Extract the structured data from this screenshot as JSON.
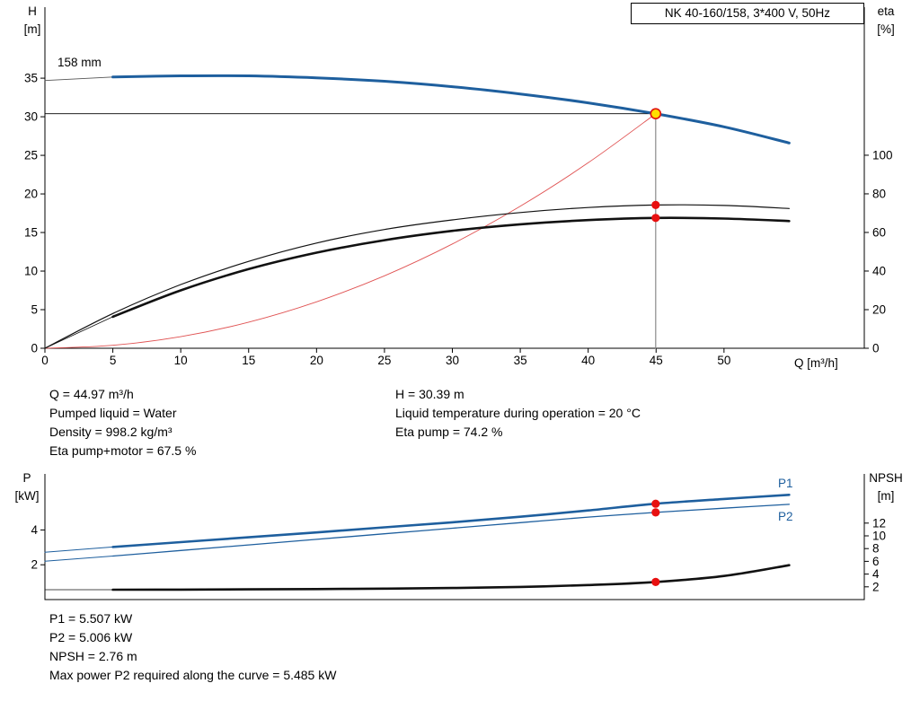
{
  "header": {
    "title": "NK 40-160/158, 3*400 V, 50Hz"
  },
  "top_chart": {
    "h_label": "H",
    "h_unit": "[m]",
    "eta_label": "eta",
    "eta_unit": "[%]",
    "x_label": "Q [m³/h]",
    "impeller": "158 mm"
  },
  "bottom_chart": {
    "p_label": "P",
    "p_unit": "[kW]",
    "npsh_label": "NPSH",
    "npsh_unit": "[m]",
    "p1_label": "P1",
    "p2_label": "P2"
  },
  "info_top": {
    "left": [
      "Q = 44.97 m³/h",
      "Pumped liquid = Water",
      "Density = 998.2 kg/m³",
      "Eta pump+motor = 67.5 %"
    ],
    "right": [
      "H = 30.39 m",
      "Liquid temperature during operation = 20 °C",
      "Eta pump = 74.2 %"
    ]
  },
  "info_bottom": [
    "P1 = 5.507 kW",
    "P2 = 5.006 kW",
    "NPSH = 2.76 m",
    "Max power P2 required along the curve = 5.485 kW"
  ],
  "colors": {
    "curve_blue": "#1e5f9e",
    "marker_red": "#e81010",
    "duty_yellow": "#ffdf00"
  },
  "chart_data": [
    {
      "type": "line",
      "title": "NK 40-160/158, 3*400 V, 50Hz",
      "x_axis": {
        "label": "Q [m³/h]",
        "min": 0,
        "max": 60.33,
        "ticks": [
          0,
          5,
          10,
          15,
          20,
          25,
          30,
          35,
          40,
          45,
          50
        ],
        "labels": true
      },
      "y_axes": {
        "h": {
          "label": "H [m]",
          "min": 0,
          "max": 44.2,
          "ticks": [
            0,
            5,
            10,
            15,
            20,
            25,
            30,
            35
          ],
          "side": "left"
        },
        "eta": {
          "label": "eta [%]",
          "min": 0,
          "max": 176.7,
          "ticks": [
            0,
            20,
            40,
            60,
            80,
            100
          ],
          "side": "right"
        }
      },
      "duty_point": {
        "q": 44.97,
        "h": 30.39,
        "eta_pump": 74.2,
        "eta_pump_motor": 67.5
      },
      "series": [
        {
          "name": "duty-vline",
          "axis": "h",
          "color": "#8a8a8a",
          "width": 1.2,
          "smooth": false,
          "points": [
            [
              44.97,
              0
            ],
            [
              44.97,
              30.39
            ]
          ]
        },
        {
          "name": "duty-hline",
          "axis": "h",
          "color": "#000000",
          "width": 0.9,
          "smooth": false,
          "points": [
            [
              0,
              30.39
            ],
            [
              44.97,
              30.39
            ]
          ]
        },
        {
          "name": "system-curve",
          "axis": "h",
          "color": "#e05252",
          "width": 0.9,
          "smooth": true,
          "points": [
            [
              0,
              0
            ],
            [
              5,
              0.38
            ],
            [
              10,
              1.5
            ],
            [
              15,
              3.38
            ],
            [
              20,
              6.01
            ],
            [
              25,
              9.39
            ],
            [
              30,
              13.52
            ],
            [
              35,
              18.41
            ],
            [
              40,
              24.04
            ],
            [
              44.97,
              30.39
            ]
          ]
        },
        {
          "name": "impeller-lead",
          "axis": "h",
          "color": "#555555",
          "width": 0.9,
          "smooth": false,
          "points": [
            [
              0,
              34.7
            ],
            [
              5,
              35.15
            ]
          ]
        },
        {
          "name": "eta-pump-curve",
          "axis": "eta",
          "color": "#111111",
          "width": 1.2,
          "smooth": true,
          "points": [
            [
              0,
              0
            ],
            [
              5,
              18
            ],
            [
              10,
              33
            ],
            [
              15,
              45
            ],
            [
              20,
              54.5
            ],
            [
              25,
              61.5
            ],
            [
              30,
              66.5
            ],
            [
              35,
              70.3
            ],
            [
              40,
              72.9
            ],
            [
              44.97,
              74.2
            ],
            [
              50,
              74
            ],
            [
              54.8,
              72.4
            ]
          ]
        },
        {
          "name": "eta-pump-motor-lead",
          "axis": "eta",
          "color": "#111111",
          "width": 0.8,
          "smooth": false,
          "points": [
            [
              0,
              0
            ],
            [
              5,
              16.3
            ]
          ]
        },
        {
          "name": "eta-pump-motor-curve",
          "axis": "eta",
          "color": "#111111",
          "width": 2.6,
          "smooth": true,
          "points": [
            [
              5,
              16.3
            ],
            [
              10,
              30
            ],
            [
              15,
              41
            ],
            [
              20,
              49.5
            ],
            [
              25,
              56
            ],
            [
              30,
              60.8
            ],
            [
              35,
              64.2
            ],
            [
              40,
              66.4
            ],
            [
              44.97,
              67.5
            ],
            [
              50,
              67.2
            ],
            [
              54.8,
              65.9
            ]
          ]
        },
        {
          "name": "head-curve-158mm",
          "axis": "h",
          "color": "#1e5f9e",
          "width": 3,
          "smooth": true,
          "points": [
            [
              5,
              35.15
            ],
            [
              10,
              35.3
            ],
            [
              15,
              35.3
            ],
            [
              20,
              35.05
            ],
            [
              25,
              34.6
            ],
            [
              30,
              33.9
            ],
            [
              35,
              32.95
            ],
            [
              40,
              31.8
            ],
            [
              44.97,
              30.39
            ],
            [
              50,
              28.7
            ],
            [
              54.8,
              26.6
            ]
          ]
        }
      ],
      "markers": [
        {
          "name": "eta-pump-point",
          "x": 44.97,
          "y": 74.2,
          "axis": "eta",
          "fill": "#e81010",
          "r": 4.6
        },
        {
          "name": "eta-pm-point",
          "x": 44.97,
          "y": 67.5,
          "axis": "eta",
          "fill": "#e81010",
          "r": 4.6
        },
        {
          "name": "duty-point",
          "x": 44.97,
          "y": 30.39,
          "axis": "h",
          "fill": "#ffdf00",
          "stroke": "#e01010",
          "sw": 1.6,
          "r": 5.5
        }
      ]
    },
    {
      "type": "line",
      "title": "Power and NPSH",
      "x_axis": {
        "label": "",
        "min": 0,
        "max": 60.33,
        "ticks": [],
        "labels": false
      },
      "y_axes": {
        "p": {
          "label": "P [kW]",
          "min": 0,
          "max": 7.22,
          "ticks": [
            2,
            4
          ],
          "side": "left"
        },
        "npsh": {
          "label": "NPSH [m]",
          "min": 0,
          "max": 19.72,
          "ticks": [
            2,
            4,
            6,
            8,
            10,
            12
          ],
          "side": "right"
        }
      },
      "duty_point": {
        "q": 44.97,
        "p1": 5.507,
        "p2": 5.006,
        "npsh": 2.76,
        "max_p2_along_curve": 5.485
      },
      "series": [
        {
          "name": "p1-lead",
          "axis": "p",
          "color": "#1e5f9e",
          "width": 1,
          "smooth": false,
          "points": [
            [
              0,
              2.72
            ],
            [
              5,
              3.02
            ]
          ]
        },
        {
          "name": "p2-lead",
          "axis": "p",
          "color": "#1e5f9e",
          "width": 1,
          "smooth": false,
          "points": [
            [
              0,
              2.2
            ],
            [
              5,
              2.5
            ]
          ]
        },
        {
          "name": "npsh-lead",
          "axis": "npsh",
          "color": "#111111",
          "width": 0.8,
          "smooth": false,
          "points": [
            [
              0,
              1.55
            ],
            [
              5,
              1.55
            ]
          ]
        },
        {
          "name": "p2-curve",
          "axis": "p",
          "color": "#1e5f9e",
          "width": 1.3,
          "smooth": true,
          "points": [
            [
              5,
              2.5
            ],
            [
              10,
              2.82
            ],
            [
              15,
              3.14
            ],
            [
              20,
              3.46
            ],
            [
              25,
              3.78
            ],
            [
              30,
              4.1
            ],
            [
              35,
              4.42
            ],
            [
              40,
              4.74
            ],
            [
              44.97,
              5.006
            ],
            [
              50,
              5.25
            ],
            [
              54.8,
              5.47
            ]
          ]
        },
        {
          "name": "p1-curve",
          "axis": "p",
          "color": "#1e5f9e",
          "width": 2.6,
          "smooth": true,
          "points": [
            [
              5,
              3.02
            ],
            [
              10,
              3.3
            ],
            [
              15,
              3.58
            ],
            [
              20,
              3.86
            ],
            [
              25,
              4.15
            ],
            [
              30,
              4.44
            ],
            [
              35,
              4.76
            ],
            [
              40,
              5.12
            ],
            [
              44.97,
              5.507
            ],
            [
              50,
              5.78
            ],
            [
              54.8,
              6.02
            ]
          ]
        },
        {
          "name": "npsh-curve",
          "axis": "npsh",
          "color": "#111111",
          "width": 2.6,
          "smooth": true,
          "points": [
            [
              5,
              1.55
            ],
            [
              10,
              1.57
            ],
            [
              15,
              1.6
            ],
            [
              20,
              1.65
            ],
            [
              25,
              1.72
            ],
            [
              30,
              1.82
            ],
            [
              35,
              1.98
            ],
            [
              40,
              2.28
            ],
            [
              44.97,
              2.76
            ],
            [
              50,
              3.7
            ],
            [
              54.8,
              5.4
            ]
          ]
        }
      ],
      "markers": [
        {
          "name": "p1-point",
          "x": 44.97,
          "y": 5.507,
          "axis": "p",
          "fill": "#e81010",
          "r": 4.6
        },
        {
          "name": "p2-point",
          "x": 44.97,
          "y": 5.006,
          "axis": "p",
          "fill": "#e81010",
          "r": 4.6
        },
        {
          "name": "npsh-point",
          "x": 44.97,
          "y": 2.76,
          "axis": "npsh",
          "fill": "#e81010",
          "r": 4.6
        }
      ]
    }
  ]
}
